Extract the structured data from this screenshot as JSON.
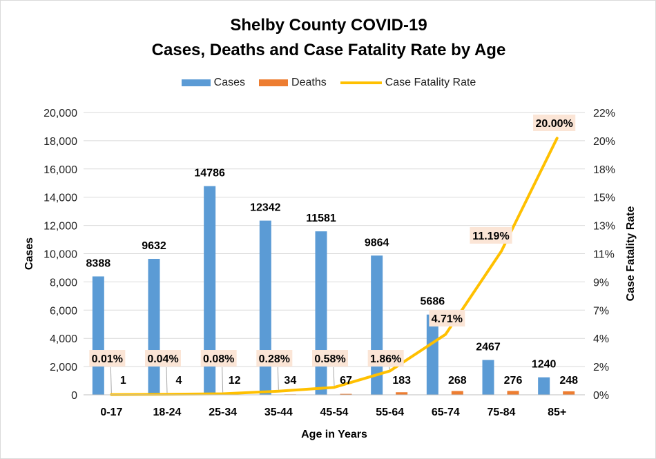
{
  "title_line1": "Shelby County COVID-19",
  "title_line2": "Cases, Deaths and Case Fatality Rate by Age",
  "legend": {
    "cases": "Cases",
    "deaths": "Deaths",
    "cfr": "Case Fatality Rate"
  },
  "colors": {
    "cases": "#5b9bd5",
    "deaths": "#ed7d31",
    "cfr": "#ffc000",
    "label_bg": "#fbe5d6",
    "grid": "#d9d9d9"
  },
  "chart_data": {
    "type": "bar",
    "title": "Shelby County COVID-19 Cases, Deaths and Case Fatality Rate by Age",
    "xlabel": "Age in Years",
    "ylabel": "Cases",
    "y2label": "Case Fatality Rate",
    "categories": [
      "0-17",
      "18-24",
      "25-34",
      "35-44",
      "45-54",
      "55-64",
      "65-74",
      "75-84",
      "85+"
    ],
    "series": [
      {
        "name": "Cases",
        "type": "bar",
        "axis": "left",
        "values": [
          8388,
          9632,
          14786,
          12342,
          11581,
          9864,
          5686,
          2467,
          1240
        ]
      },
      {
        "name": "Deaths",
        "type": "bar",
        "axis": "left",
        "values": [
          1,
          4,
          12,
          34,
          67,
          183,
          268,
          276,
          248
        ]
      },
      {
        "name": "Case Fatality Rate",
        "type": "line",
        "axis": "right",
        "values": [
          0.01,
          0.04,
          0.08,
          0.28,
          0.58,
          1.86,
          4.71,
          11.19,
          20.0
        ],
        "labels": [
          "0.01%",
          "0.04%",
          "0.08%",
          "0.28%",
          "0.58%",
          "1.86%",
          "4.71%",
          "11.19%",
          "20.00%"
        ]
      }
    ],
    "ylim": [
      0,
      20000
    ],
    "y_ticks": [
      0,
      2000,
      4000,
      6000,
      8000,
      10000,
      12000,
      14000,
      16000,
      18000,
      20000
    ],
    "y_tick_labels": [
      "0",
      "2,000",
      "4,000",
      "6,000",
      "8,000",
      "10,000",
      "12,000",
      "14,000",
      "16,000",
      "18,000",
      "20,000"
    ],
    "y2lim": [
      0,
      22
    ],
    "y2_tick_labels": [
      "0%",
      "2%",
      "4%",
      "7%",
      "9%",
      "11%",
      "13%",
      "15%",
      "18%",
      "20%",
      "22%"
    ],
    "grid": true,
    "legend_position": "top"
  }
}
